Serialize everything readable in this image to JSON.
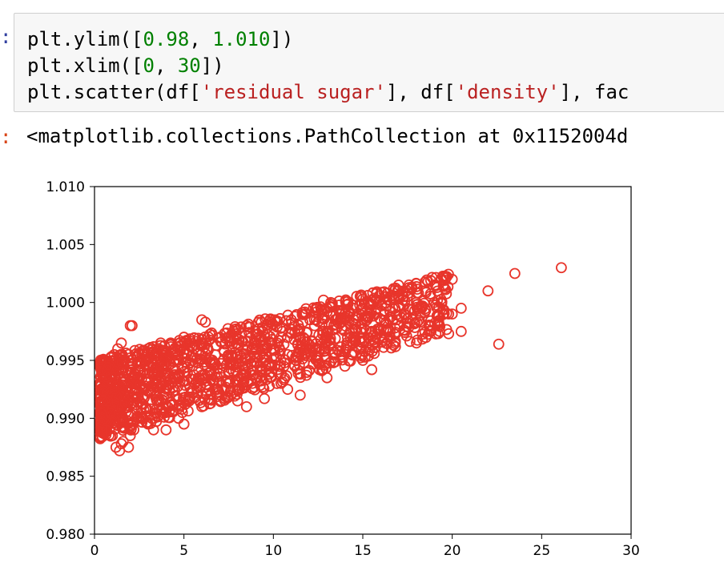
{
  "cell": {
    "in_prompt": ":",
    "out_prompt": ":",
    "code_lines": [
      [
        {
          "t": "plt.ylim([",
          "c": ""
        },
        {
          "t": "0.98",
          "c": "num"
        },
        {
          "t": ", ",
          "c": ""
        },
        {
          "t": "1.010",
          "c": "num"
        },
        {
          "t": "])",
          "c": ""
        }
      ],
      [
        {
          "t": "plt.xlim([",
          "c": ""
        },
        {
          "t": "0",
          "c": "num"
        },
        {
          "t": ", ",
          "c": ""
        },
        {
          "t": "30",
          "c": "num"
        },
        {
          "t": "])",
          "c": ""
        }
      ],
      [
        {
          "t": "plt.scatter(df[",
          "c": ""
        },
        {
          "t": "'residual sugar'",
          "c": "str"
        },
        {
          "t": "], df[",
          "c": ""
        },
        {
          "t": "'density'",
          "c": "str"
        },
        {
          "t": "], fac",
          "c": ""
        }
      ]
    ],
    "output_text": "<matplotlib.collections.PathCollection at 0x1152004d"
  },
  "colors": {
    "marker": "#e8352b",
    "axis": "#000000"
  },
  "chart_data": {
    "type": "scatter",
    "title": "",
    "xlabel": "",
    "ylabel": "",
    "xlim": [
      0,
      30
    ],
    "ylim": [
      0.98,
      1.01
    ],
    "xticks": [
      "0",
      "5",
      "10",
      "15",
      "20",
      "25",
      "30"
    ],
    "yticks": [
      "0.980",
      "0.985",
      "0.990",
      "0.995",
      "1.000",
      "1.005",
      "1.010"
    ],
    "marker": "hollow-circle",
    "grid": false,
    "series": [
      {
        "points": [
          [
            0.4,
            0.9925
          ],
          [
            0.5,
            0.9905
          ],
          [
            0.6,
            0.9935
          ],
          [
            0.7,
            0.9895
          ],
          [
            0.8,
            0.9915
          ],
          [
            0.9,
            0.9945
          ],
          [
            1.0,
            0.9885
          ],
          [
            1.0,
            0.99
          ],
          [
            1.1,
            0.9955
          ],
          [
            1.2,
            0.9875
          ],
          [
            1.2,
            0.993
          ],
          [
            1.3,
            0.996
          ],
          [
            1.4,
            0.9872
          ],
          [
            1.5,
            0.9965
          ],
          [
            1.5,
            0.991
          ],
          [
            1.6,
            0.988
          ],
          [
            1.7,
            0.995
          ],
          [
            1.8,
            0.992
          ],
          [
            1.9,
            0.9875
          ],
          [
            2.0,
            0.9945
          ],
          [
            2.1,
            0.998
          ],
          [
            2.2,
            0.989
          ],
          [
            2.3,
            0.993
          ],
          [
            2.5,
            0.9955
          ],
          [
            2.6,
            0.9905
          ],
          [
            2.8,
            0.9925
          ],
          [
            3.0,
            0.996
          ],
          [
            3.0,
            0.9895
          ],
          [
            3.2,
            0.994
          ],
          [
            3.5,
            0.9915
          ],
          [
            3.7,
            0.9965
          ],
          [
            4.0,
            0.9905
          ],
          [
            4.0,
            0.9945
          ],
          [
            4.3,
            0.993
          ],
          [
            4.5,
            0.996
          ],
          [
            4.7,
            0.99
          ],
          [
            5.0,
            0.994
          ],
          [
            5.0,
            0.997
          ],
          [
            5.3,
            0.9915
          ],
          [
            5.5,
            0.9955
          ],
          [
            5.8,
            0.9935
          ],
          [
            6.0,
            0.9985
          ],
          [
            6.0,
            0.991
          ],
          [
            6.3,
            0.996
          ],
          [
            6.5,
            0.994
          ],
          [
            6.8,
            0.9925
          ],
          [
            7.0,
            0.997
          ],
          [
            7.2,
            0.995
          ],
          [
            7.5,
            0.993
          ],
          [
            7.8,
            0.9975
          ],
          [
            8.0,
            0.9955
          ],
          [
            8.0,
            0.9915
          ],
          [
            8.3,
            0.9945
          ],
          [
            8.5,
            0.998
          ],
          [
            8.8,
            0.996
          ],
          [
            9.0,
            0.9935
          ],
          [
            9.3,
            0.997
          ],
          [
            9.5,
            0.995
          ],
          [
            9.8,
            0.9985
          ],
          [
            10.0,
            0.996
          ],
          [
            10.2,
            0.993
          ],
          [
            10.5,
            0.9975
          ],
          [
            10.8,
            0.9955
          ],
          [
            11.0,
            0.9985
          ],
          [
            11.2,
            0.9945
          ],
          [
            11.5,
            0.997
          ],
          [
            11.8,
            0.999
          ],
          [
            12.0,
            0.996
          ],
          [
            12.3,
            0.998
          ],
          [
            12.5,
            0.995
          ],
          [
            12.8,
            0.9975
          ],
          [
            13.0,
            0.9995
          ],
          [
            13.2,
            0.9965
          ],
          [
            13.5,
            0.9985
          ],
          [
            13.8,
            0.9955
          ],
          [
            14.0,
            0.999
          ],
          [
            14.3,
            0.997
          ],
          [
            14.5,
            0.9995
          ],
          [
            14.8,
            0.996
          ],
          [
            15.0,
            0.9985
          ],
          [
            15.3,
            1.0
          ],
          [
            15.5,
            0.9975
          ],
          [
            15.8,
            0.9995
          ],
          [
            16.0,
            0.9985
          ],
          [
            16.3,
            1.0005
          ],
          [
            16.5,
            0.997
          ],
          [
            16.8,
            0.9995
          ],
          [
            17.0,
            1.001
          ],
          [
            17.3,
            0.999
          ],
          [
            17.5,
            1.0005
          ],
          [
            17.8,
            0.9985
          ],
          [
            18.0,
            1.0
          ],
          [
            18.3,
            0.9995
          ],
          [
            18.5,
            1.001
          ],
          [
            18.8,
            0.998
          ],
          [
            19.0,
            1.0
          ],
          [
            19.3,
            0.9975
          ],
          [
            19.5,
            1.0015
          ],
          [
            19.8,
            0.999
          ],
          [
            20.0,
            1.002
          ],
          [
            20.5,
            0.9975
          ],
          [
            20.5,
            0.9995
          ],
          [
            22.0,
            1.001
          ],
          [
            22.6,
            0.9964
          ],
          [
            23.5,
            1.0025
          ],
          [
            26.1,
            1.003
          ],
          [
            2.0,
            0.998
          ],
          [
            15.5,
            0.9942
          ],
          [
            14.0,
            0.9945
          ],
          [
            16.9,
            0.9985
          ],
          [
            19.8,
            0.9973
          ],
          [
            20.0,
            0.999
          ],
          [
            17.0,
            1.0015
          ],
          [
            16.2,
            1.0005
          ],
          [
            16.8,
            0.9978
          ],
          [
            12.8,
            1.0002
          ],
          [
            12.4,
            0.9985
          ],
          [
            9.0,
            0.9975
          ],
          [
            6.2,
            0.9983
          ],
          [
            7.5,
            0.994
          ],
          [
            11.5,
            0.992
          ],
          [
            10.8,
            0.9925
          ],
          [
            5.0,
            0.9895
          ],
          [
            4.0,
            0.989
          ],
          [
            3.3,
            0.989
          ],
          [
            2.0,
            0.9885
          ],
          [
            1.5,
            0.9878
          ],
          [
            8.5,
            0.991
          ],
          [
            9.5,
            0.9917
          ],
          [
            13.0,
            0.9935
          ],
          [
            15.0,
            0.995
          ],
          [
            18.0,
            0.9965
          ]
        ]
      }
    ]
  }
}
